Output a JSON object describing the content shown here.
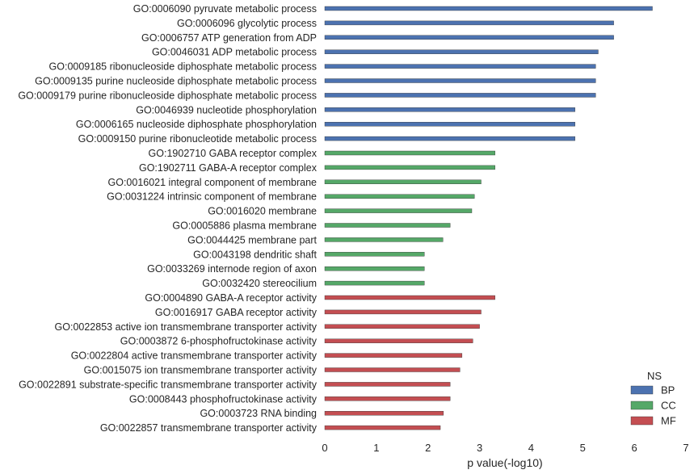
{
  "chart_data": {
    "type": "bar",
    "orientation": "horizontal",
    "categories": [
      "GO:0006090 pyruvate metabolic process",
      "GO:0006096 glycolytic process",
      "GO:0006757 ATP generation from ADP",
      "GO:0046031 ADP metabolic process",
      "GO:0009185 ribonucleoside diphosphate metabolic process",
      "GO:0009135 purine nucleoside diphosphate metabolic process",
      "GO:0009179 purine ribonucleoside diphosphate metabolic process",
      "GO:0046939 nucleotide phosphorylation",
      "GO:0006165 nucleoside diphosphate phosphorylation",
      "GO:0009150 purine ribonucleotide metabolic process",
      "GO:1902710 GABA receptor complex",
      "GO:1902711 GABA-A receptor complex",
      "GO:0016021 integral component of membrane",
      "GO:0031224 intrinsic component of membrane",
      "GO:0016020 membrane",
      "GO:0005886 plasma membrane",
      "GO:0044425 membrane part",
      "GO:0043198 dendritic shaft",
      "GO:0033269 internode region of axon",
      "GO:0032420 stereocilium",
      "GO:0004890 GABA-A receptor activity",
      "GO:0016917 GABA receptor activity",
      "GO:0022853 active ion transmembrane transporter activity",
      "GO:0003872 6-phosphofructokinase activity",
      "GO:0022804 active transmembrane transporter activity",
      "GO:0015075 ion transmembrane transporter activity",
      "GO:0022891 substrate-specific transmembrane transporter activity",
      "GO:0008443 phosphofructokinase activity",
      "GO:0003723 RNA binding",
      "GO:0022857 transmembrane transporter activity"
    ],
    "values": [
      6.35,
      5.6,
      5.6,
      5.3,
      5.25,
      5.25,
      5.25,
      4.85,
      4.85,
      4.85,
      3.3,
      3.3,
      3.03,
      2.9,
      2.85,
      2.43,
      2.29,
      1.93,
      1.93,
      1.93,
      3.3,
      3.03,
      3.0,
      2.87,
      2.66,
      2.62,
      2.43,
      2.43,
      2.3,
      2.24
    ],
    "groups": [
      "BP",
      "BP",
      "BP",
      "BP",
      "BP",
      "BP",
      "BP",
      "BP",
      "BP",
      "BP",
      "CC",
      "CC",
      "CC",
      "CC",
      "CC",
      "CC",
      "CC",
      "CC",
      "CC",
      "CC",
      "MF",
      "MF",
      "MF",
      "MF",
      "MF",
      "MF",
      "MF",
      "MF",
      "MF",
      "MF"
    ],
    "xlabel": "p value(-log10)",
    "xlim": [
      0,
      7
    ],
    "xticks": [
      0,
      1,
      2,
      3,
      4,
      5,
      6,
      7
    ],
    "grid": false,
    "legend": {
      "title": "NS",
      "placement": "bottom-right",
      "entries": [
        {
          "name": "BP",
          "color": "#4C72B0"
        },
        {
          "name": "CC",
          "color": "#55A868"
        },
        {
          "name": "MF",
          "color": "#C44E52"
        }
      ]
    }
  }
}
